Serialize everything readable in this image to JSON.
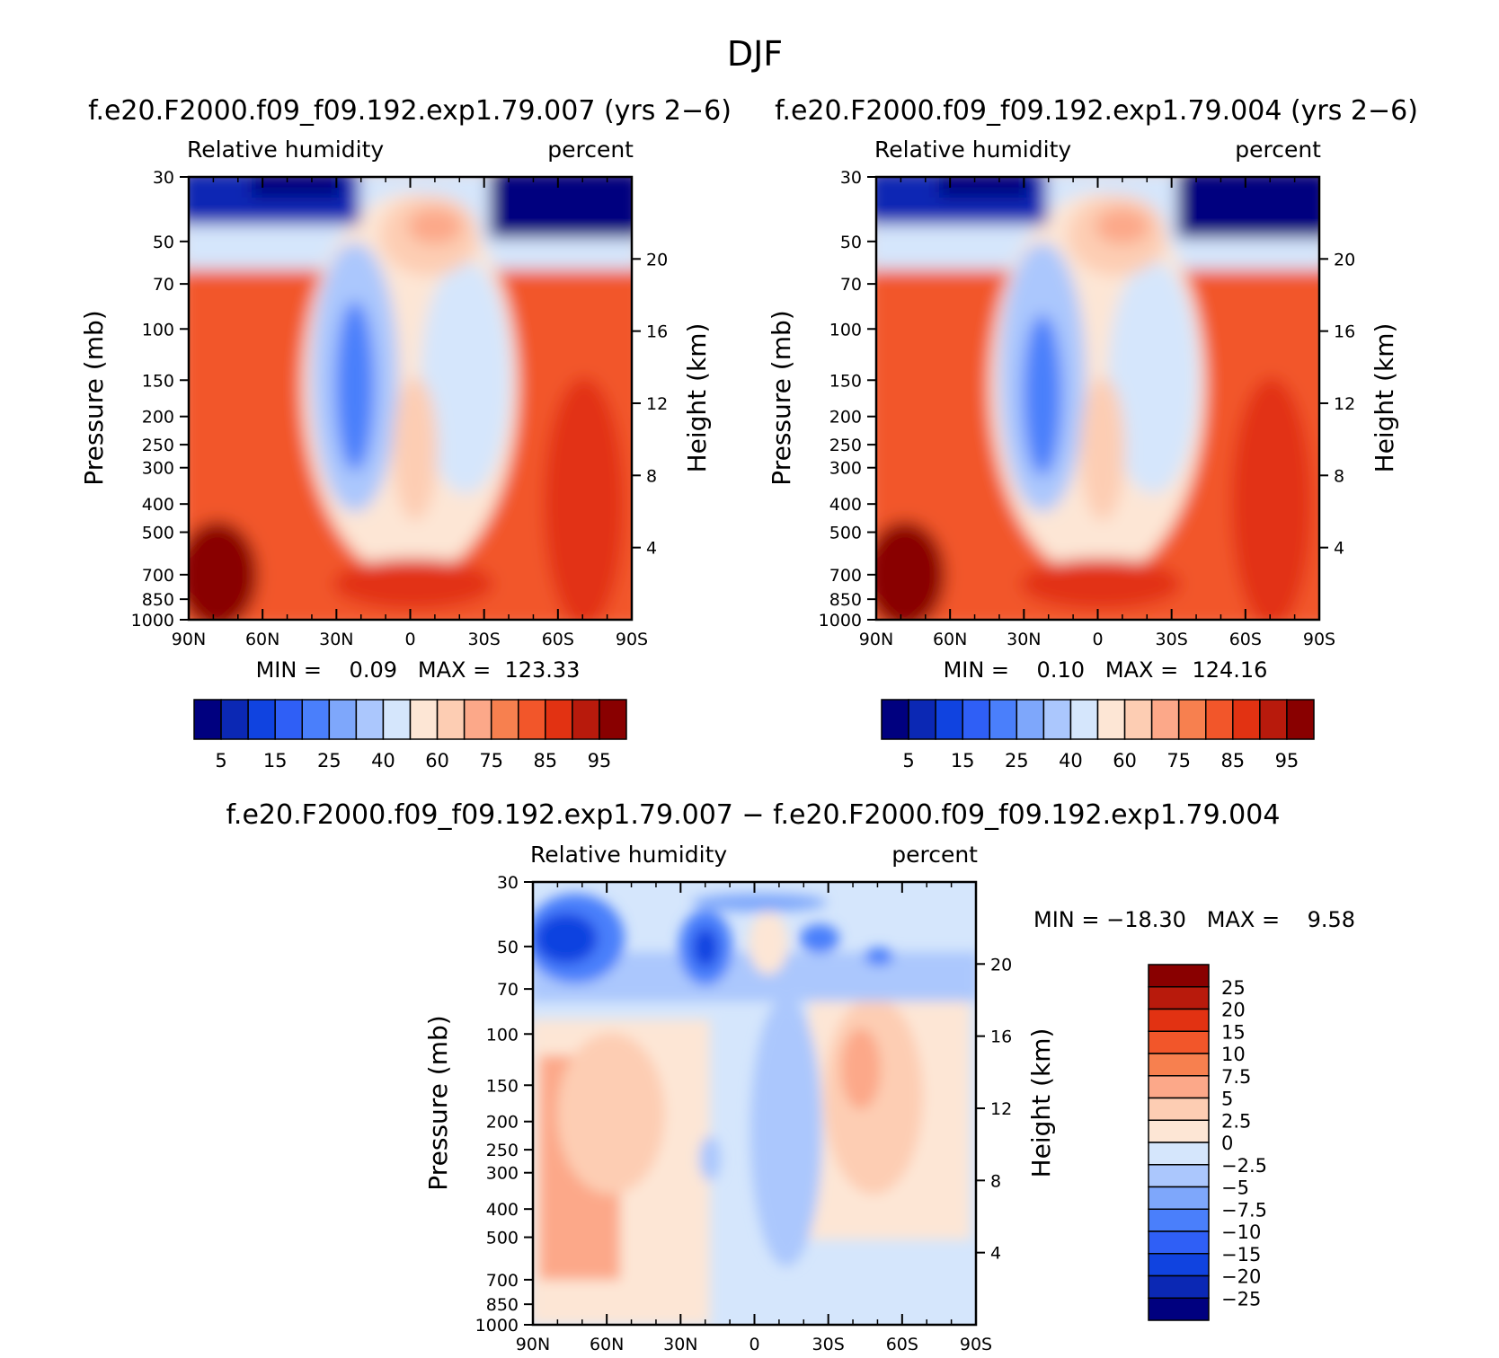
{
  "title": "DJF",
  "colors": {
    "rh_palette": [
      "#00007f",
      "#0b28b4",
      "#1043e0",
      "#2f5ff6",
      "#4a7ffb",
      "#7ea7fb",
      "#abc7fd",
      "#d5e6fc",
      "#fde6d5",
      "#fdcdb3",
      "#fca889",
      "#f7804f",
      "#f2562a",
      "#e23212",
      "#b81a0c",
      "#890000"
    ],
    "diff_palette": [
      "#890000",
      "#b81a0c",
      "#e23212",
      "#f2562a",
      "#f7804f",
      "#fca889",
      "#fdcdb3",
      "#fde6d5",
      "#d5e6fc",
      "#abc7fd",
      "#7ea7fb",
      "#4a7ffb",
      "#2f5ff6",
      "#1043e0",
      "#0b28b4",
      "#00007f"
    ]
  },
  "chart_data": [
    {
      "type": "contour",
      "case_title": "f.e20.F2000.f09_f09.192.exp1.79.007 (yrs 2−6)",
      "variable": "Relative humidity",
      "units": "percent",
      "xlabel": "",
      "ylabel": "Pressure (mb)",
      "y2label": "Height (km)",
      "x_ticks": [
        "90N",
        "60N",
        "30N",
        "0",
        "30S",
        "60S",
        "90S"
      ],
      "pressure_ticks": [
        "30",
        "50",
        "70",
        "100",
        "150",
        "200",
        "250",
        "300",
        "400",
        "500",
        "700",
        "850",
        "1000"
      ],
      "height_ticks": [
        "20",
        "16",
        "12",
        "8",
        "4"
      ],
      "min_max_text": "MIN =    0.09   MAX =  123.33",
      "min": 0.09,
      "max": 123.33,
      "levels": [
        "5",
        "15",
        "25",
        "40",
        "60",
        "75",
        "85",
        "95"
      ]
    },
    {
      "type": "contour",
      "case_title": "f.e20.F2000.f09_f09.192.exp1.79.004 (yrs 2−6)",
      "variable": "Relative humidity",
      "units": "percent",
      "xlabel": "",
      "ylabel": "Pressure (mb)",
      "y2label": "Height (km)",
      "x_ticks": [
        "90N",
        "60N",
        "30N",
        "0",
        "30S",
        "60S",
        "90S"
      ],
      "pressure_ticks": [
        "30",
        "50",
        "70",
        "100",
        "150",
        "200",
        "250",
        "300",
        "400",
        "500",
        "700",
        "850",
        "1000"
      ],
      "height_ticks": [
        "20",
        "16",
        "12",
        "8",
        "4"
      ],
      "min_max_text": "MIN =    0.10   MAX =  124.16",
      "min": 0.1,
      "max": 124.16,
      "levels": [
        "5",
        "15",
        "25",
        "40",
        "60",
        "75",
        "85",
        "95"
      ]
    },
    {
      "type": "contour",
      "case_title": "f.e20.F2000.f09_f09.192.exp1.79.007 − f.e20.F2000.f09_f09.192.exp1.79.004",
      "variable": "Relative humidity",
      "units": "percent",
      "xlabel": "",
      "ylabel": "Pressure (mb)",
      "y2label": "Height (km)",
      "x_ticks": [
        "90N",
        "60N",
        "30N",
        "0",
        "30S",
        "60S",
        "90S"
      ],
      "pressure_ticks": [
        "30",
        "50",
        "70",
        "100",
        "150",
        "200",
        "250",
        "300",
        "400",
        "500",
        "700",
        "850",
        "1000"
      ],
      "height_ticks": [
        "20",
        "16",
        "12",
        "8",
        "4"
      ],
      "min_max_text": "MIN = −18.30   MAX =    9.58",
      "min": -18.3,
      "max": 9.58,
      "levels": [
        "25",
        "20",
        "15",
        "10",
        "7.5",
        "5",
        "2.5",
        "0",
        "−2.5",
        "−5",
        "−7.5",
        "−10",
        "−15",
        "−20",
        "−25"
      ]
    }
  ]
}
